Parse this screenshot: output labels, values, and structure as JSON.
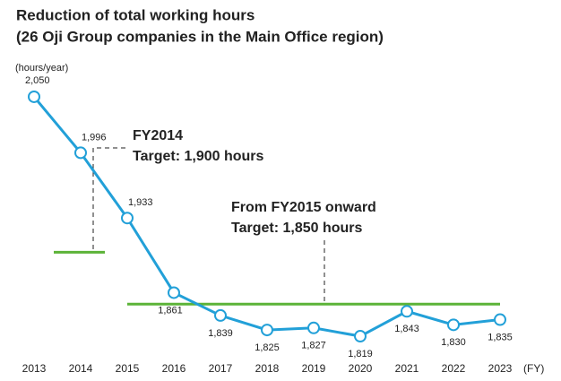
{
  "chart_data": {
    "type": "line",
    "title": "Reduction of total working hours",
    "subtitle": "(26 Oji Group companies in the Main Office region)",
    "y_label": "(hours/year)",
    "x_label": "(FY)",
    "categories": [
      "2013",
      "2014",
      "2015",
      "2016",
      "2017",
      "2018",
      "2019",
      "2020",
      "2021",
      "2022",
      "2023"
    ],
    "values": [
      2050,
      1996,
      1933,
      1861,
      1839,
      1825,
      1827,
      1819,
      1843,
      1830,
      1835
    ],
    "value_labels": [
      "2,050",
      "1,996",
      "1,933",
      "1,861",
      "1,839",
      "1,825",
      "1,827",
      "1,819",
      "1,843",
      "1,830",
      "1,835"
    ],
    "color": "#22a0d8",
    "ylim": [
      1800,
      2060
    ],
    "targets": [
      {
        "value": 1900,
        "text": [
          "FY2014",
          "Target: 1,900 hours"
        ],
        "color": "#5cb338"
      },
      {
        "value": 1850,
        "text": [
          "From FY2015 onward",
          "Target: 1,850 hours"
        ],
        "color": "#5cb338"
      }
    ]
  }
}
